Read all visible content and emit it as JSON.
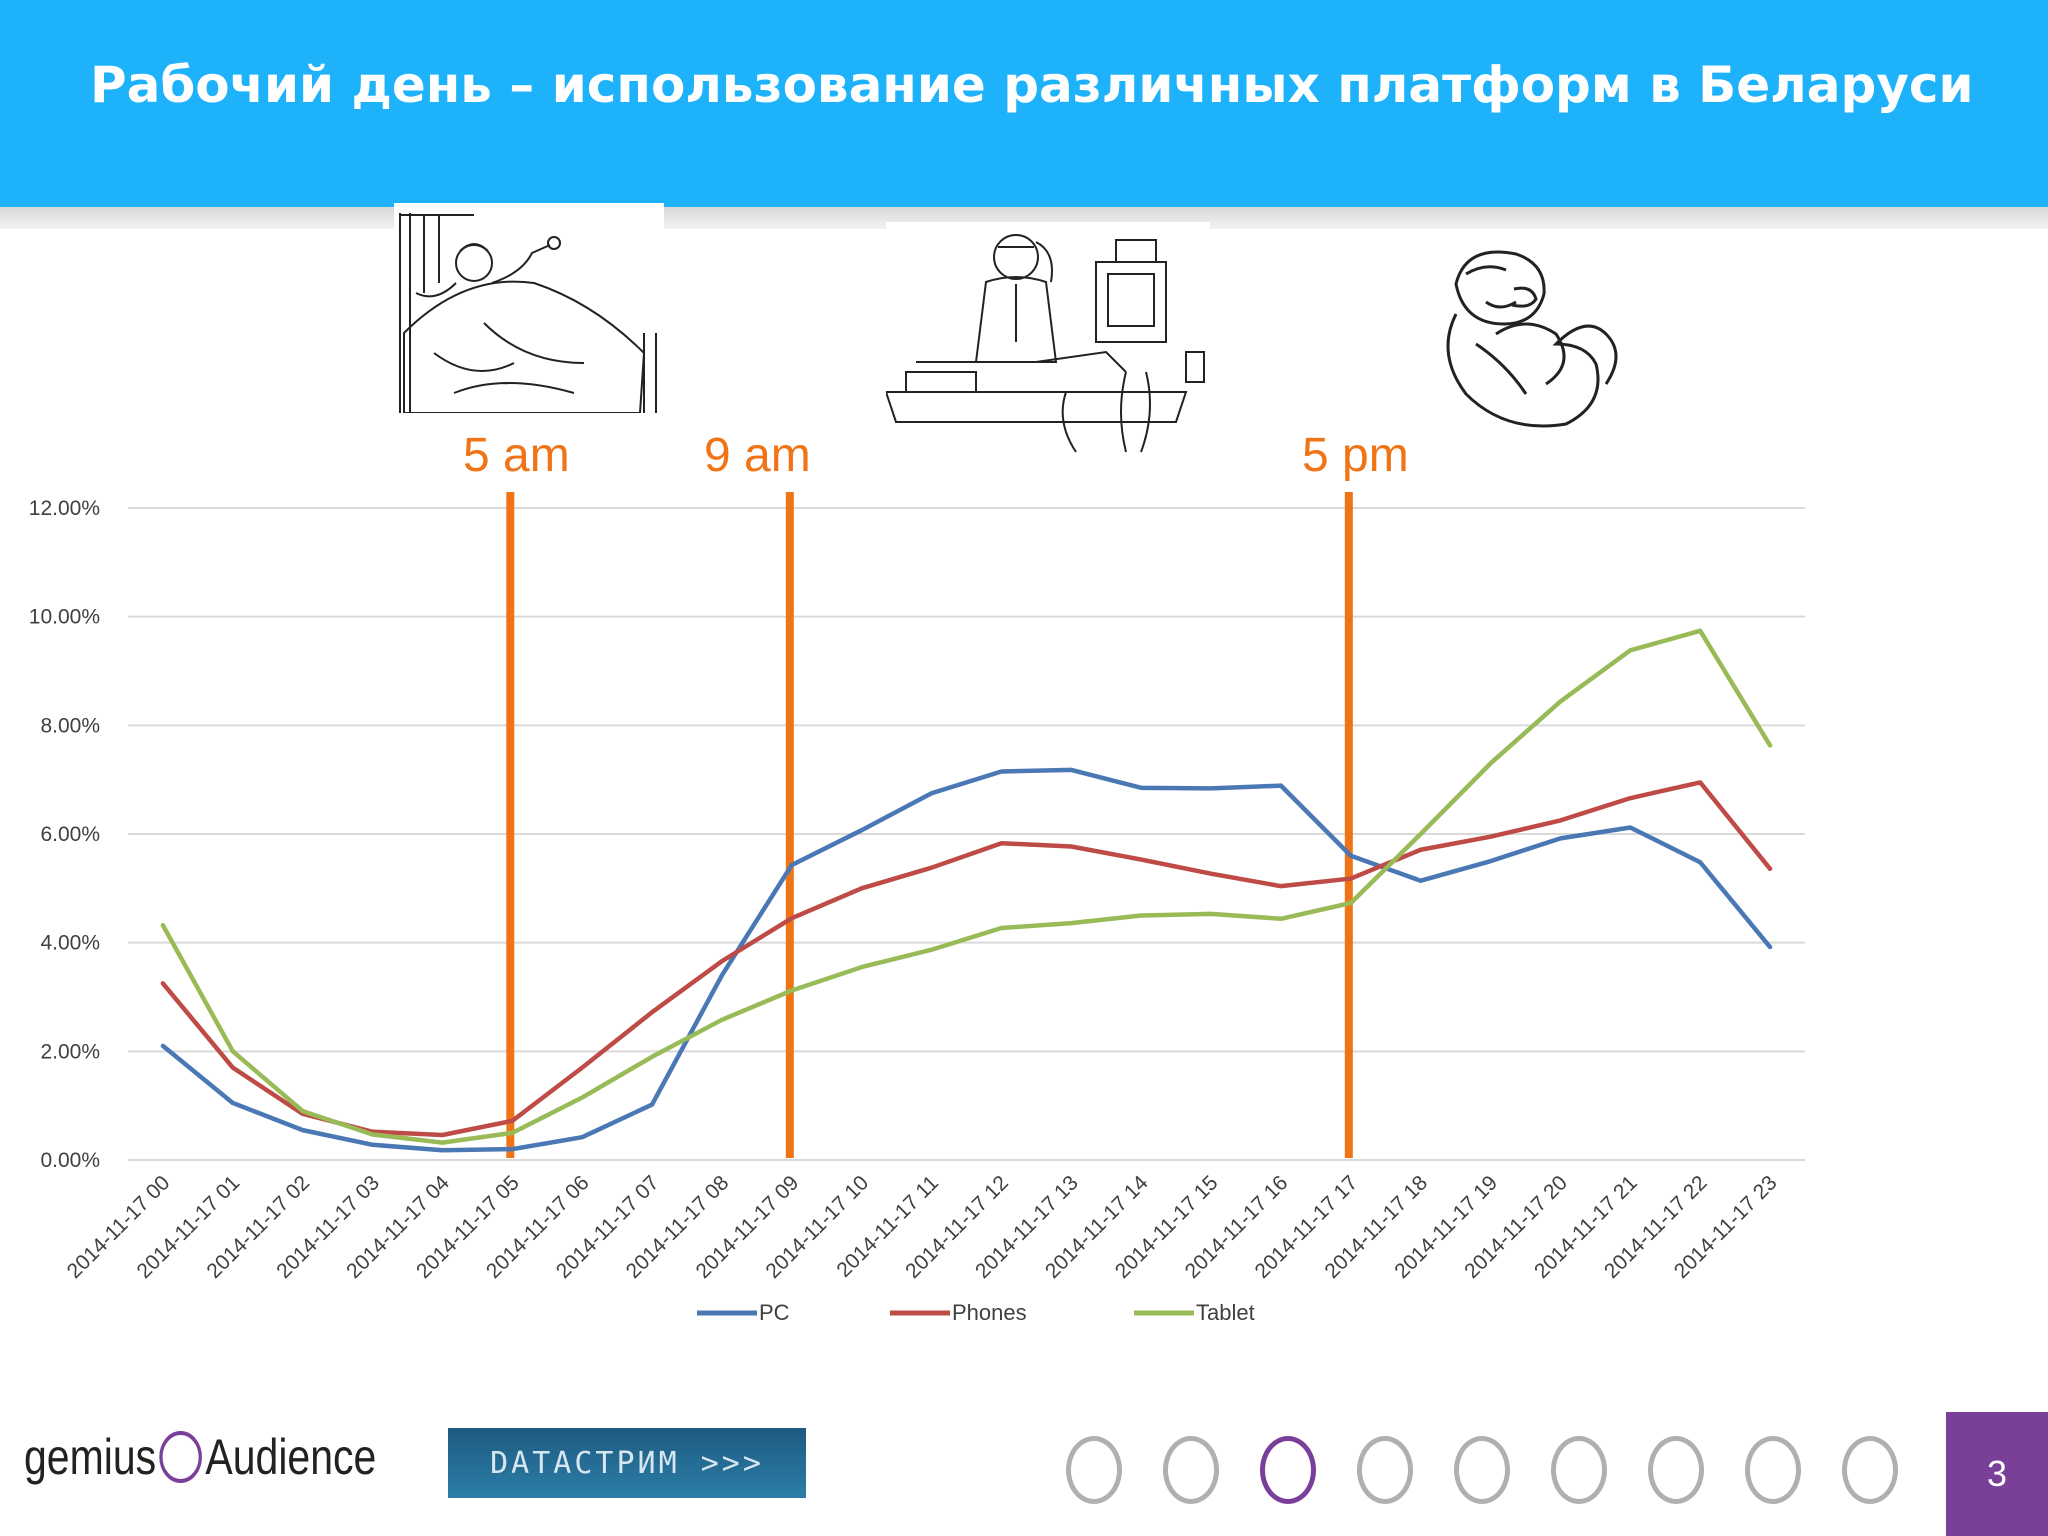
{
  "page": {
    "title": "Рабочий день – использование различных платформ в Беларуси",
    "page_number": "3"
  },
  "markers": [
    {
      "label": "5 am",
      "x_category": "2014-11-17 05"
    },
    {
      "label": "9 am",
      "x_category": "2014-11-17 09"
    },
    {
      "label": "5 pm",
      "x_category": "2014-11-17 17"
    }
  ],
  "illustrations": [
    "waking-up-illustration",
    "office-worker-illustration",
    "relaxing-man-illustration"
  ],
  "footer": {
    "brand_left": "gemius",
    "brand_right": "Audience",
    "datastream_label": "DATACTPИM >>>",
    "icons": [
      "hand-pointer-icon",
      "location-pin-icon",
      "audience-icon",
      "mountain-icon",
      "wifi-icon",
      "swirl-icon",
      "lightning-icon",
      "cart-icon",
      "traffic-light-icon"
    ]
  },
  "colors": {
    "header": "#1eb2fb",
    "marker": "#f07415",
    "pc": "#4a78b5",
    "phones": "#bf4b47",
    "tablet": "#98bb57",
    "accent": "#7a3f99"
  },
  "chart_data": {
    "type": "line",
    "categories": [
      "2014-11-17 00",
      "2014-11-17 01",
      "2014-11-17 02",
      "2014-11-17 03",
      "2014-11-17 04",
      "2014-11-17 05",
      "2014-11-17 06",
      "2014-11-17 07",
      "2014-11-17 08",
      "2014-11-17 09",
      "2014-11-17 10",
      "2014-11-17 11",
      "2014-11-17 12",
      "2014-11-17 13",
      "2014-11-17 14",
      "2014-11-17 15",
      "2014-11-17 16",
      "2014-11-17 17",
      "2014-11-17 18",
      "2014-11-17 19",
      "2014-11-17 20",
      "2014-11-17 21",
      "2014-11-17 22",
      "2014-11-17 23"
    ],
    "series": [
      {
        "name": "PC",
        "values": [
          2.1,
          1.05,
          0.55,
          0.28,
          0.18,
          0.2,
          0.42,
          1.02,
          3.4,
          5.43,
          6.07,
          6.75,
          7.15,
          7.18,
          6.85,
          6.84,
          6.89,
          5.6,
          5.14,
          5.5,
          5.92,
          6.12,
          5.48,
          3.92
        ]
      },
      {
        "name": "Phones",
        "values": [
          3.25,
          1.7,
          0.85,
          0.52,
          0.46,
          0.72,
          1.7,
          2.72,
          3.66,
          4.45,
          5.0,
          5.38,
          5.83,
          5.77,
          5.53,
          5.27,
          5.04,
          5.18,
          5.71,
          5.95,
          6.25,
          6.66,
          6.95,
          5.36
        ]
      },
      {
        "name": "Tablet",
        "values": [
          4.32,
          2.0,
          0.9,
          0.47,
          0.32,
          0.5,
          1.15,
          1.9,
          2.58,
          3.12,
          3.55,
          3.87,
          4.27,
          4.36,
          4.5,
          4.53,
          4.44,
          4.73,
          6.0,
          7.3,
          8.44,
          9.38,
          9.74,
          7.63
        ]
      }
    ],
    "y_ticks": [
      "0.00%",
      "2.00%",
      "4.00%",
      "6.00%",
      "8.00%",
      "10.00%",
      "12.00%"
    ],
    "ylim": [
      0,
      12
    ],
    "grid": true,
    "legend": "bottom"
  }
}
